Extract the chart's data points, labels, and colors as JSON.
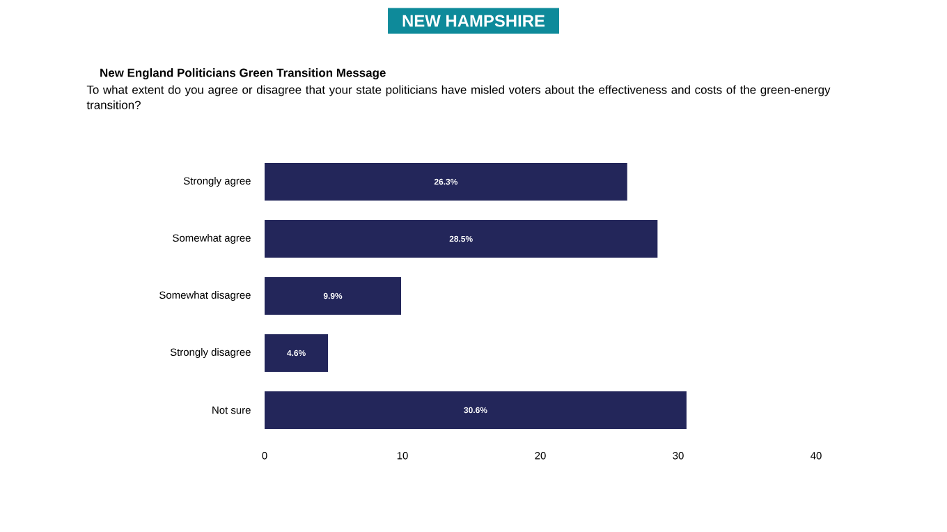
{
  "chart_data": {
    "type": "bar",
    "orientation": "horizontal",
    "title": "NEW HAMPSHIRE",
    "subtitle": "New England Politicians Green Transition Message",
    "annotations": [
      "To what extent do you agree or disagree that your state politicians have misled voters about the effectiveness and costs of the green-energy transition?"
    ],
    "categories": [
      "Strongly agree",
      "Somewhat agree",
      "Somewhat disagree",
      "Strongly disagree",
      "Not sure"
    ],
    "values": [
      26.3,
      28.5,
      9.9,
      4.6,
      30.6
    ],
    "value_labels": [
      "26.3%",
      "28.5%",
      "9.9%",
      "4.6%",
      "30.6%"
    ],
    "color": "#23265a",
    "xlim": [
      0,
      40
    ],
    "xticks": [
      0,
      10,
      20,
      30,
      40
    ]
  }
}
